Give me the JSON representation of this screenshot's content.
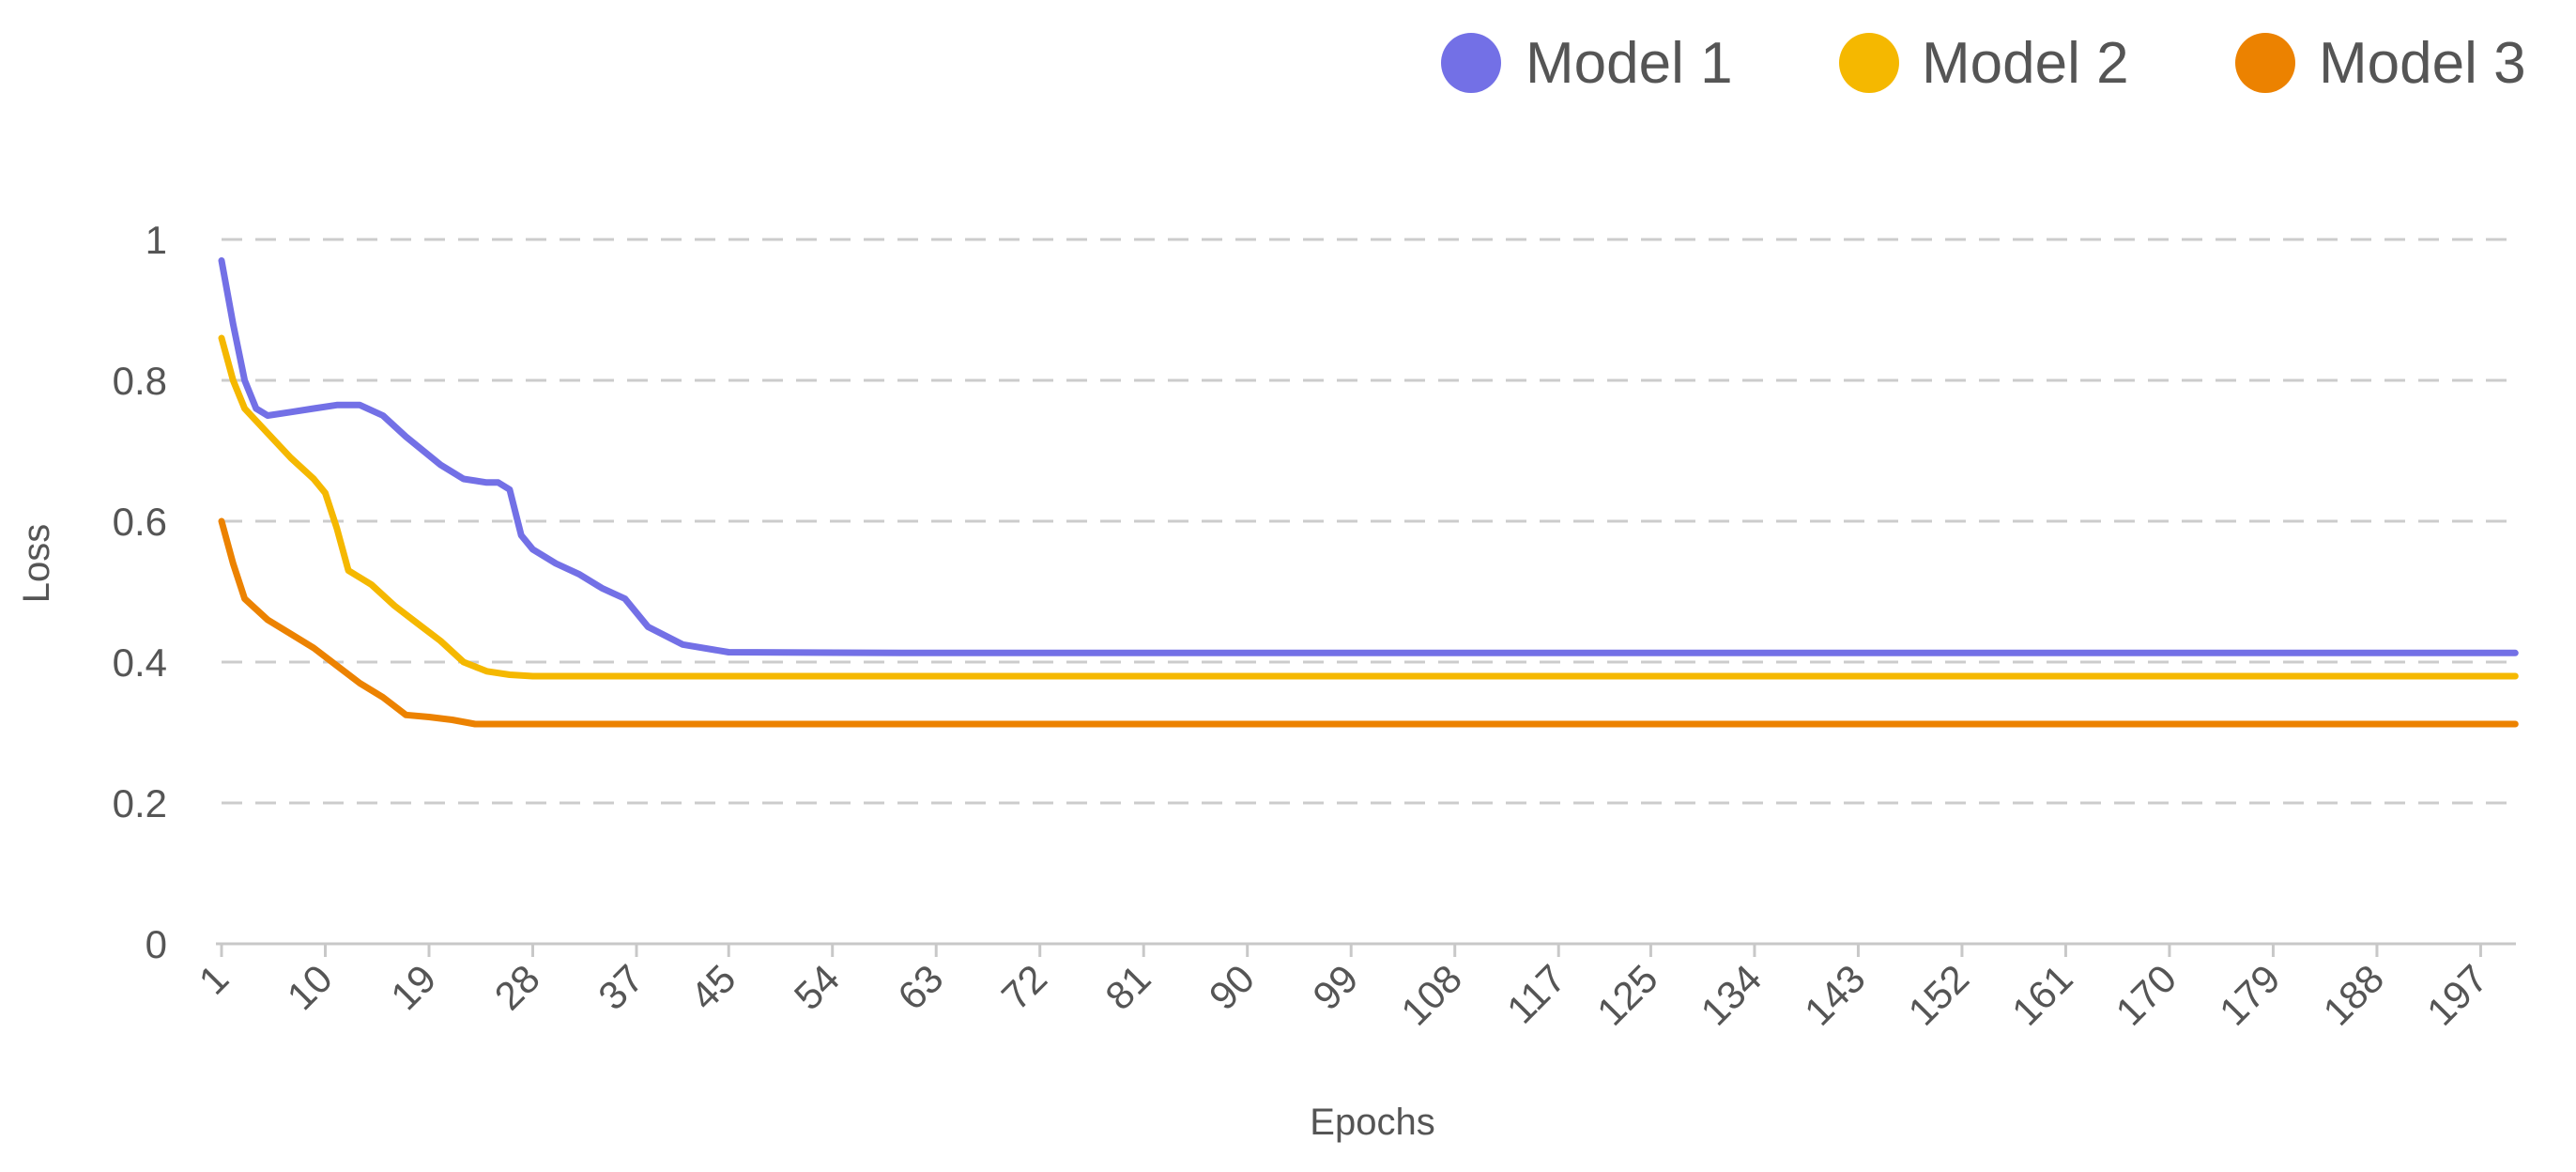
{
  "chart_data": {
    "type": "line",
    "xlabel": "Epochs",
    "ylabel": "Loss",
    "ylim": [
      0,
      1
    ],
    "yticks": [
      0,
      0.2,
      0.4,
      0.6,
      0.8,
      1
    ],
    "ytick_labels": [
      "0",
      "0.2",
      "0.4",
      "0.6",
      "0.8",
      "1"
    ],
    "xlim": [
      1,
      200
    ],
    "xticks": [
      1,
      10,
      19,
      28,
      37,
      45,
      54,
      63,
      72,
      81,
      90,
      99,
      108,
      117,
      125,
      134,
      143,
      152,
      161,
      170,
      179,
      188,
      197
    ],
    "grid": "horizontal dashed",
    "legend_position": "top-right",
    "series": [
      {
        "name": "Model 1",
        "color": "#7370e6",
        "points": [
          [
            1,
            0.97
          ],
          [
            2,
            0.88
          ],
          [
            3,
            0.8
          ],
          [
            4,
            0.76
          ],
          [
            5,
            0.75
          ],
          [
            7,
            0.755
          ],
          [
            9,
            0.76
          ],
          [
            11,
            0.765
          ],
          [
            13,
            0.765
          ],
          [
            15,
            0.75
          ],
          [
            17,
            0.72
          ],
          [
            20,
            0.68
          ],
          [
            22,
            0.66
          ],
          [
            24,
            0.655
          ],
          [
            25,
            0.655
          ],
          [
            26,
            0.645
          ],
          [
            27,
            0.58
          ],
          [
            28,
            0.56
          ],
          [
            30,
            0.54
          ],
          [
            32,
            0.525
          ],
          [
            34,
            0.505
          ],
          [
            36,
            0.49
          ],
          [
            38,
            0.45
          ],
          [
            41,
            0.425
          ],
          [
            45,
            0.414
          ],
          [
            60,
            0.413
          ],
          [
            100,
            0.413
          ],
          [
            150,
            0.413
          ],
          [
            200,
            0.413
          ]
        ]
      },
      {
        "name": "Model 2",
        "color": "#f5b800",
        "points": [
          [
            1,
            0.86
          ],
          [
            2,
            0.8
          ],
          [
            3,
            0.76
          ],
          [
            5,
            0.725
          ],
          [
            7,
            0.69
          ],
          [
            9,
            0.66
          ],
          [
            10,
            0.64
          ],
          [
            11,
            0.59
          ],
          [
            12,
            0.53
          ],
          [
            14,
            0.51
          ],
          [
            16,
            0.48
          ],
          [
            18,
            0.455
          ],
          [
            20,
            0.43
          ],
          [
            22,
            0.4
          ],
          [
            24,
            0.387
          ],
          [
            26,
            0.382
          ],
          [
            28,
            0.38
          ],
          [
            45,
            0.38
          ],
          [
            100,
            0.38
          ],
          [
            150,
            0.38
          ],
          [
            200,
            0.38
          ]
        ]
      },
      {
        "name": "Model 3",
        "color": "#ec8200",
        "points": [
          [
            1,
            0.6
          ],
          [
            2,
            0.54
          ],
          [
            3,
            0.49
          ],
          [
            5,
            0.46
          ],
          [
            7,
            0.44
          ],
          [
            9,
            0.42
          ],
          [
            11,
            0.395
          ],
          [
            13,
            0.37
          ],
          [
            15,
            0.35
          ],
          [
            17,
            0.325
          ],
          [
            19,
            0.322
          ],
          [
            21,
            0.318
          ],
          [
            23,
            0.312
          ],
          [
            30,
            0.312
          ],
          [
            100,
            0.312
          ],
          [
            150,
            0.312
          ],
          [
            200,
            0.312
          ]
        ]
      }
    ]
  }
}
